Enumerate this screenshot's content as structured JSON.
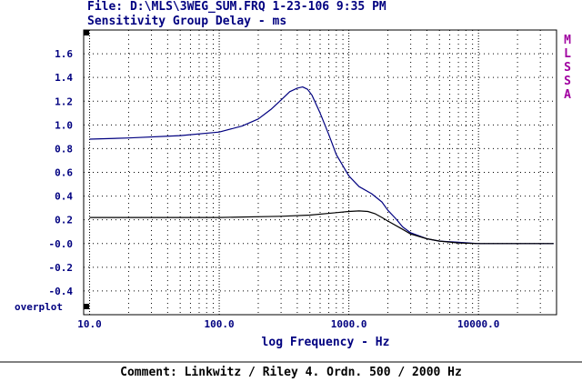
{
  "chart_data": {
    "type": "line",
    "file_line": "File: D:\\MLS\\3WEG_SUM.FRQ 1-23-106 9:35 PM",
    "title": "Sensitivity Group Delay - ms",
    "xlabel": "log Frequency - Hz",
    "ylabel": "",
    "x_scale": "log",
    "xlim": [
      9,
      40000
    ],
    "ylim": [
      -0.6,
      1.8
    ],
    "x_ticks": [
      {
        "value": 10,
        "label": "10.0"
      },
      {
        "value": 100,
        "label": "100.0"
      },
      {
        "value": 1000,
        "label": "1000.0"
      },
      {
        "value": 10000,
        "label": "10000.0"
      }
    ],
    "y_ticks": [
      {
        "value": 1.6,
        "label": "1.6"
      },
      {
        "value": 1.4,
        "label": "1.4"
      },
      {
        "value": 1.2,
        "label": "1.2"
      },
      {
        "value": 1.0,
        "label": "1.0"
      },
      {
        "value": 0.8,
        "label": "0.8"
      },
      {
        "value": 0.6,
        "label": "0.6"
      },
      {
        "value": 0.4,
        "label": "0.4"
      },
      {
        "value": 0.2,
        "label": "0.2"
      },
      {
        "value": 0.0,
        "label": "-0.0"
      },
      {
        "value": -0.2,
        "label": "-0.2"
      },
      {
        "value": -0.4,
        "label": "-0.4"
      }
    ],
    "grid": true,
    "side_label": [
      "M",
      "L",
      "S",
      "S",
      "A"
    ],
    "overplot_label": "overplot",
    "comment": "Comment: Linkwitz / Riley 4. Ordn. 500 / 2000 Hz",
    "series": [
      {
        "color": "#000080",
        "x": [
          10,
          20,
          50,
          100,
          150,
          200,
          250,
          300,
          350,
          400,
          440,
          480,
          520,
          600,
          700,
          800,
          1000,
          1200,
          1500,
          1800,
          2000,
          2300,
          2600,
          3000,
          4000,
          5000,
          7000,
          10000,
          15000,
          20000,
          38000
        ],
        "y": [
          0.88,
          0.89,
          0.91,
          0.94,
          0.99,
          1.05,
          1.13,
          1.21,
          1.28,
          1.31,
          1.32,
          1.3,
          1.25,
          1.1,
          0.92,
          0.75,
          0.57,
          0.48,
          0.42,
          0.35,
          0.28,
          0.21,
          0.14,
          0.09,
          0.04,
          0.02,
          0.01,
          0.0,
          0.0,
          0.0,
          0.0
        ]
      },
      {
        "color": "#000000",
        "x": [
          10,
          50,
          100,
          300,
          500,
          800,
          1000,
          1200,
          1400,
          1600,
          1800,
          2000,
          2500,
          3000,
          4000,
          5000,
          7000,
          10000,
          15000,
          38000
        ],
        "y": [
          0.22,
          0.22,
          0.22,
          0.23,
          0.24,
          0.26,
          0.27,
          0.275,
          0.27,
          0.25,
          0.22,
          0.19,
          0.13,
          0.08,
          0.04,
          0.02,
          0.005,
          0.0,
          0.0,
          0.0
        ]
      }
    ]
  }
}
